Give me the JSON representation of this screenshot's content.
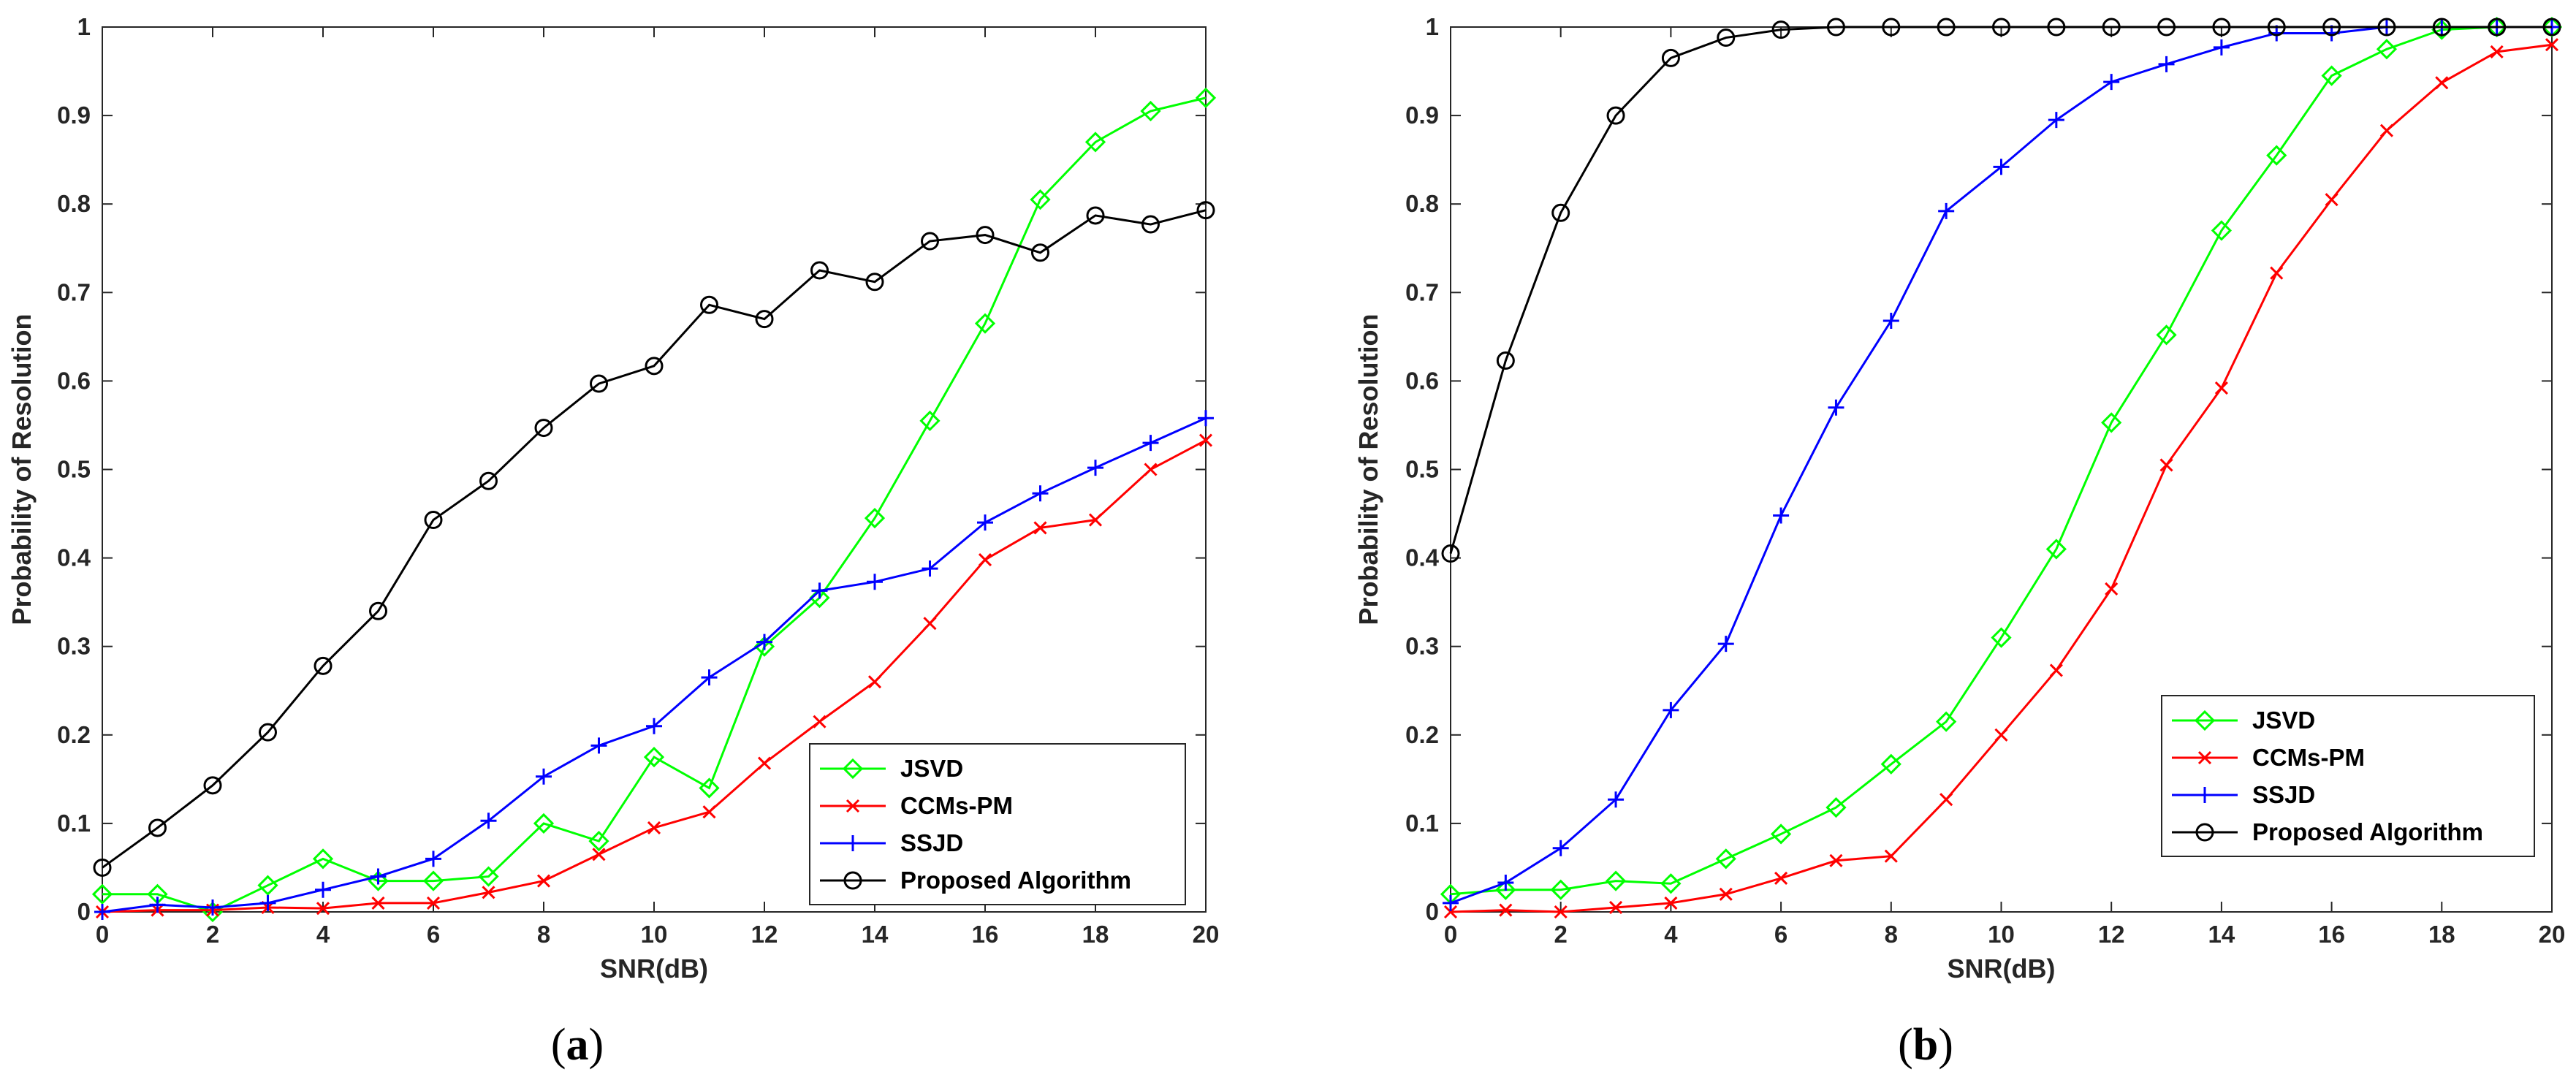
{
  "chart_data": [
    {
      "type": "line",
      "panel_label": "(a)",
      "xlabel": "SNR(dB)",
      "ylabel": "Probability of Resolution",
      "xlim": [
        0,
        20
      ],
      "ylim": [
        0,
        1
      ],
      "xticks": [
        "0",
        "2",
        "4",
        "6",
        "8",
        "10",
        "12",
        "14",
        "16",
        "18",
        "20"
      ],
      "yticks": [
        "0",
        "0.1",
        "0.2",
        "0.3",
        "0.4",
        "0.5",
        "0.6",
        "0.7",
        "0.8",
        "0.9",
        "1"
      ],
      "legend_position": "bottom-right",
      "x": [
        0,
        1,
        2,
        3,
        4,
        5,
        6,
        7,
        8,
        9,
        10,
        11,
        12,
        13,
        14,
        15,
        16,
        17,
        18,
        19,
        20
      ],
      "series": [
        {
          "name": "JSVD",
          "color": "#00ff00",
          "marker": "diamond",
          "values": [
            0.02,
            0.02,
            0.0,
            0.03,
            0.06,
            0.035,
            0.035,
            0.04,
            0.1,
            0.08,
            0.175,
            0.14,
            0.3,
            0.355,
            0.445,
            0.555,
            0.665,
            0.805,
            0.87,
            0.905,
            0.92
          ]
        },
        {
          "name": "CCMs-PM",
          "color": "#ff0000",
          "marker": "x",
          "values": [
            0.0,
            0.002,
            0.002,
            0.005,
            0.004,
            0.01,
            0.01,
            0.022,
            0.035,
            0.065,
            0.095,
            0.113,
            0.168,
            0.215,
            0.26,
            0.326,
            0.398,
            0.434,
            0.443,
            0.5,
            0.533
          ]
        },
        {
          "name": "SSJD",
          "color": "#0000ff",
          "marker": "plus",
          "values": [
            0.0,
            0.008,
            0.005,
            0.01,
            0.025,
            0.04,
            0.06,
            0.103,
            0.153,
            0.188,
            0.21,
            0.265,
            0.305,
            0.363,
            0.373,
            0.388,
            0.44,
            0.473,
            0.502,
            0.53,
            0.558
          ]
        },
        {
          "name": "Proposed Algorithm",
          "color": "#000000",
          "marker": "circle",
          "values": [
            0.05,
            0.095,
            0.143,
            0.203,
            0.278,
            0.34,
            0.443,
            0.487,
            0.547,
            0.597,
            0.617,
            0.686,
            0.67,
            0.725,
            0.712,
            0.758,
            0.765,
            0.745,
            0.787,
            0.777,
            0.793
          ]
        }
      ]
    },
    {
      "type": "line",
      "panel_label": "(b)",
      "xlabel": "SNR(dB)",
      "ylabel": "Probability of Resolution",
      "xlim": [
        0,
        20
      ],
      "ylim": [
        0,
        1
      ],
      "xticks": [
        "0",
        "2",
        "4",
        "6",
        "8",
        "10",
        "12",
        "14",
        "16",
        "18",
        "20"
      ],
      "yticks": [
        "0",
        "0.1",
        "0.2",
        "0.3",
        "0.4",
        "0.5",
        "0.6",
        "0.7",
        "0.8",
        "0.9",
        "1"
      ],
      "legend_position": "bottom-right",
      "x": [
        0,
        1,
        2,
        3,
        4,
        5,
        6,
        7,
        8,
        9,
        10,
        11,
        12,
        13,
        14,
        15,
        16,
        17,
        18,
        19,
        20
      ],
      "series": [
        {
          "name": "JSVD",
          "color": "#00ff00",
          "marker": "diamond",
          "values": [
            0.02,
            0.025,
            0.025,
            0.035,
            0.032,
            0.06,
            0.088,
            0.118,
            0.167,
            0.215,
            0.31,
            0.41,
            0.553,
            0.652,
            0.77,
            0.855,
            0.945,
            0.975,
            0.997,
            1.0,
            1.0
          ]
        },
        {
          "name": "CCMs-PM",
          "color": "#ff0000",
          "marker": "x",
          "values": [
            0.0,
            0.002,
            0.0,
            0.005,
            0.01,
            0.02,
            0.038,
            0.058,
            0.063,
            0.127,
            0.2,
            0.273,
            0.365,
            0.505,
            0.592,
            0.722,
            0.805,
            0.883,
            0.937,
            0.972,
            0.98
          ]
        },
        {
          "name": "SSJD",
          "color": "#0000ff",
          "marker": "plus",
          "values": [
            0.01,
            0.033,
            0.072,
            0.127,
            0.228,
            0.303,
            0.448,
            0.57,
            0.668,
            0.792,
            0.842,
            0.895,
            0.938,
            0.958,
            0.977,
            0.993,
            0.993,
            1.0,
            1.0,
            1.0,
            1.0
          ]
        },
        {
          "name": "Proposed Algorithm",
          "color": "#000000",
          "marker": "circle",
          "values": [
            0.405,
            0.623,
            0.79,
            0.9,
            0.965,
            0.988,
            0.997,
            1.0,
            1.0,
            1.0,
            1.0,
            1.0,
            1.0,
            1.0,
            1.0,
            1.0,
            1.0,
            1.0,
            1.0,
            1.0,
            1.0
          ]
        }
      ]
    }
  ]
}
